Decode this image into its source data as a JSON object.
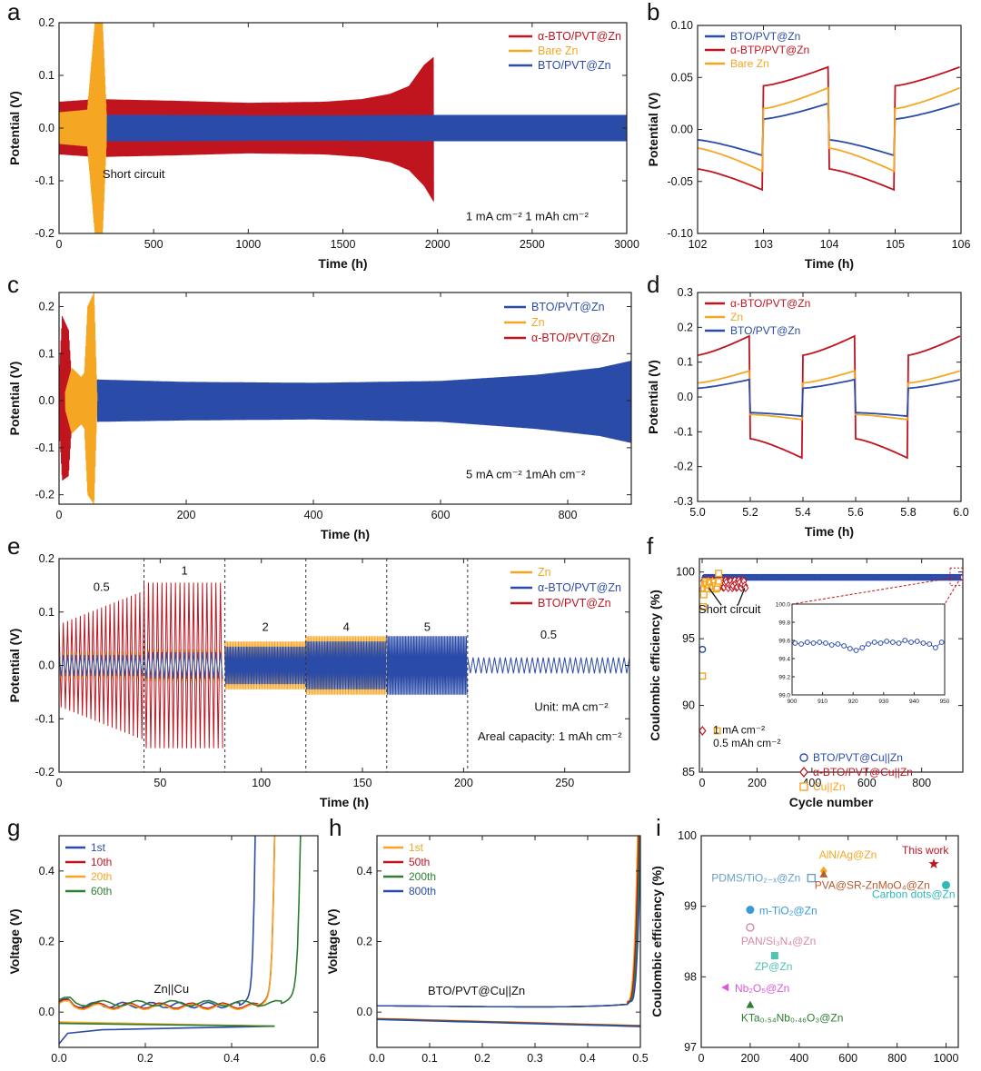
{
  "colors": {
    "red": "#c0141f",
    "orange": "#f5a623",
    "blue": "#2b4ba8",
    "green": "#2e7d32",
    "teal": "#2fb8b8",
    "lightblue": "#6aa0c8",
    "pink": "#d88aa8",
    "magenta": "#d85ad8",
    "brown": "#b85a2a"
  },
  "chart_data": [
    {
      "id": "a",
      "panel_label": "a",
      "type": "line",
      "xlabel": "Time (h)",
      "ylabel": "Potential (V)",
      "xlim": [
        0,
        3000
      ],
      "ylim": [
        -0.2,
        0.2
      ],
      "xticks": [
        0,
        500,
        1000,
        1500,
        2000,
        2500,
        3000
      ],
      "xtick_labels": [
        "0",
        "500",
        "1000",
        "1500",
        "2000",
        "2500",
        "3000"
      ],
      "yticks": [
        -0.2,
        -0.1,
        0.0,
        0.1,
        0.2
      ],
      "ytick_labels": [
        "-0.2",
        "-0.1",
        "0.0",
        "0.1",
        "0.2"
      ],
      "series": [
        {
          "name": "α-BTO/PVT@Zn",
          "color": "#c0141f",
          "kind": "envelope",
          "x": [
            0,
            200,
            600,
            1000,
            1400,
            1600,
            1750,
            1850,
            1930,
            1980
          ],
          "upper": [
            0.05,
            0.055,
            0.052,
            0.048,
            0.05,
            0.055,
            0.065,
            0.08,
            0.12,
            0.135
          ],
          "lower": [
            -0.05,
            -0.055,
            -0.052,
            -0.048,
            -0.05,
            -0.055,
            -0.065,
            -0.08,
            -0.11,
            -0.14
          ]
        },
        {
          "name": "Bare Zn",
          "color": "#f5a623",
          "kind": "envelope",
          "x": [
            0,
            150,
            190,
            210,
            230,
            250
          ],
          "upper": [
            0.03,
            0.035,
            0.2,
            0.2,
            0.2,
            0.03
          ],
          "lower": [
            -0.03,
            -0.035,
            -0.2,
            -0.2,
            -0.2,
            -0.03
          ]
        },
        {
          "name": "BTO/PVT@Zn",
          "color": "#2b4ba8",
          "kind": "envelope",
          "x": [
            0,
            500,
            1000,
            1500,
            2000,
            2500,
            3000
          ],
          "upper": [
            0.025,
            0.025,
            0.024,
            0.024,
            0.025,
            0.025,
            0.025
          ],
          "lower": [
            -0.025,
            -0.025,
            -0.024,
            -0.024,
            -0.025,
            -0.025,
            -0.025
          ]
        }
      ],
      "annotations": [
        {
          "text": "Short circuit",
          "x": 230,
          "y": -0.095
        },
        {
          "text": "1 mA cm⁻²  1 mAh cm⁻²",
          "x": 2150,
          "y": -0.175
        }
      ]
    },
    {
      "id": "b",
      "panel_label": "b",
      "type": "line",
      "xlabel": "Time (h)",
      "ylabel": "Potential (V)",
      "xlim": [
        102,
        106
      ],
      "ylim": [
        -0.1,
        0.1
      ],
      "xticks": [
        102,
        103,
        104,
        105,
        106
      ],
      "xtick_labels": [
        "102",
        "103",
        "104",
        "105",
        "106"
      ],
      "yticks": [
        -0.1,
        -0.05,
        0.0,
        0.05,
        0.1
      ],
      "ytick_labels": [
        "-0.10",
        "-0.05",
        "0.00",
        "0.05",
        "0.10"
      ],
      "series": [
        {
          "name": "BTO/PVT@Zn",
          "color": "#2b4ba8",
          "kind": "square",
          "amp_pos_start": 0.01,
          "amp_pos_end": 0.025,
          "amp_neg_start": -0.01,
          "amp_neg_end": -0.025
        },
        {
          "name": "α-BTP/PVT@Zn",
          "color": "#c0141f",
          "kind": "square",
          "amp_pos_start": 0.042,
          "amp_pos_end": 0.06,
          "amp_neg_start": -0.038,
          "amp_neg_end": -0.058
        },
        {
          "name": "Bare Zn",
          "color": "#f5a623",
          "kind": "square",
          "amp_pos_start": 0.02,
          "amp_pos_end": 0.04,
          "amp_neg_start": -0.018,
          "amp_neg_end": -0.04
        }
      ]
    },
    {
      "id": "c",
      "panel_label": "c",
      "type": "line",
      "xlabel": "Time (h)",
      "ylabel": "Potential (V)",
      "xlim": [
        0,
        900
      ],
      "ylim": [
        -0.22,
        0.23
      ],
      "xticks": [
        0,
        200,
        400,
        600,
        800
      ],
      "xtick_labels": [
        "0",
        "200",
        "400",
        "600",
        "800"
      ],
      "yticks": [
        -0.2,
        -0.1,
        0.0,
        0.1,
        0.2
      ],
      "ytick_labels": [
        "-0.2",
        "-0.1",
        "0.0",
        "0.1",
        "0.2"
      ],
      "series": [
        {
          "name": "BTO/PVT@Zn",
          "color": "#2b4ba8",
          "kind": "envelope",
          "x": [
            60,
            200,
            400,
            600,
            750,
            850,
            900
          ],
          "upper": [
            0.045,
            0.04,
            0.038,
            0.042,
            0.055,
            0.07,
            0.085
          ],
          "lower": [
            -0.045,
            -0.042,
            -0.04,
            -0.045,
            -0.06,
            -0.075,
            -0.09
          ]
        },
        {
          "name": "Zn",
          "color": "#f5a623",
          "kind": "envelope",
          "x": [
            10,
            20,
            35,
            40,
            45,
            55,
            60
          ],
          "upper": [
            0.02,
            0.07,
            0.05,
            0.06,
            0.2,
            0.23,
            0.0
          ],
          "lower": [
            -0.02,
            -0.07,
            -0.05,
            -0.06,
            -0.2,
            -0.22,
            0.0
          ]
        },
        {
          "name": "α-BTO/PVT@Zn",
          "color": "#c0141f",
          "kind": "envelope",
          "x": [
            0,
            5,
            15,
            22
          ],
          "upper": [
            0.05,
            0.18,
            0.15,
            0.0
          ],
          "lower": [
            -0.05,
            -0.17,
            -0.16,
            0.0
          ]
        }
      ],
      "annotations": [
        {
          "text": "5 mA cm⁻² 1mAh cm⁻²",
          "x": 640,
          "y": -0.165
        }
      ]
    },
    {
      "id": "d",
      "panel_label": "d",
      "type": "line",
      "xlabel": "Time (h)",
      "ylabel": "Potential (V)",
      "xlim": [
        5.0,
        6.0
      ],
      "ylim": [
        -0.3,
        0.3
      ],
      "xticks": [
        5.0,
        5.2,
        5.4,
        5.6,
        5.8,
        6.0
      ],
      "xtick_labels": [
        "5.0",
        "5.2",
        "5.4",
        "5.6",
        "5.8",
        "6.0"
      ],
      "yticks": [
        -0.3,
        -0.2,
        -0.1,
        0.0,
        0.1,
        0.2,
        0.3
      ],
      "ytick_labels": [
        "-0.3",
        "-0.2",
        "-0.1",
        "0.0",
        "0.1",
        "0.2",
        "0.3"
      ],
      "series": [
        {
          "name": "α-BTO/PVT@Zn",
          "color": "#c0141f",
          "kind": "square",
          "amp_pos_start": 0.12,
          "amp_pos_end": 0.175,
          "amp_neg_start": -0.12,
          "amp_neg_end": -0.175
        },
        {
          "name": "Zn",
          "color": "#f5a623",
          "kind": "square",
          "amp_pos_start": 0.04,
          "amp_pos_end": 0.075,
          "amp_neg_start": -0.05,
          "amp_neg_end": -0.065
        },
        {
          "name": "BTO/PVT@Zn",
          "color": "#2b4ba8",
          "kind": "square",
          "amp_pos_start": 0.025,
          "amp_pos_end": 0.05,
          "amp_neg_start": -0.045,
          "amp_neg_end": -0.055
        }
      ]
    },
    {
      "id": "e",
      "panel_label": "e",
      "type": "line",
      "xlabel": "Time (h)",
      "ylabel": "Potential (V)",
      "xlim": [
        0,
        282
      ],
      "ylim": [
        -0.2,
        0.2
      ],
      "xticks": [
        0,
        50,
        100,
        150,
        200,
        250
      ],
      "xtick_labels": [
        "0",
        "50",
        "100",
        "150",
        "200",
        "250"
      ],
      "yticks": [
        -0.2,
        -0.1,
        0.0,
        0.1,
        0.2
      ],
      "ytick_labels": [
        "-0.2",
        "-0.1",
        "0.0",
        "0.1",
        "0.2"
      ],
      "segments": [
        {
          "x0": 0,
          "x1": 42,
          "rate_label": "0.5",
          "red_amp": 0.14,
          "blue_amp": 0.02,
          "orange_amp": 0.025
        },
        {
          "x0": 42,
          "x1": 82,
          "rate_label": "1",
          "red_amp": 0.155,
          "blue_amp": 0.025,
          "orange_amp": 0.03
        },
        {
          "x0": 82,
          "x1": 122,
          "rate_label": "2",
          "red_amp": 0.02,
          "blue_amp": 0.035,
          "orange_amp": 0.045
        },
        {
          "x0": 122,
          "x1": 162,
          "rate_label": "4",
          "red_amp": 0.0,
          "blue_amp": 0.045,
          "orange_amp": 0.055
        },
        {
          "x0": 162,
          "x1": 202,
          "rate_label": "5",
          "red_amp": 0.0,
          "blue_amp": 0.055,
          "orange_amp": 0.0
        },
        {
          "x0": 202,
          "x1": 282,
          "rate_label": "0.5",
          "red_amp": 0.0,
          "blue_amp": 0.015,
          "orange_amp": 0.0
        }
      ],
      "boundaries": [
        42,
        82,
        122,
        162,
        202
      ],
      "legend": [
        {
          "name": "Zn",
          "color": "#f5a623"
        },
        {
          "name": "α-BTO/PVT@Zn",
          "color": "#2b4ba8"
        },
        {
          "name": "BTO/PVT@Zn",
          "color": "#c0141f"
        }
      ],
      "annotations": [
        {
          "text": "Unit: mA cm⁻²",
          "x": 235,
          "y": -0.085
        },
        {
          "text": "Areal capacity: 1 mAh cm⁻²",
          "x": 207,
          "y": -0.14
        }
      ]
    },
    {
      "id": "f",
      "panel_label": "f",
      "type": "scatter",
      "xlabel": "Cycle number",
      "ylabel": "Coulombic efficiency (%)",
      "xlim": [
        -10,
        950
      ],
      "ylim": [
        85,
        101
      ],
      "xticks": [
        0,
        200,
        400,
        600,
        800
      ],
      "xtick_labels": [
        "0",
        "200",
        "400",
        "600",
        "800"
      ],
      "yticks": [
        85,
        90,
        95,
        100
      ],
      "ytick_labels": [
        "85",
        "90",
        "95",
        "100"
      ],
      "series": [
        {
          "name": "BTO/PVT@Cu||Zn",
          "color": "#2b4ba8",
          "marker": "circle",
          "first_points": [
            [
              1,
              94.2
            ],
            [
              5,
              98.6
            ],
            [
              10,
              99.1
            ]
          ],
          "steady_value": 99.6,
          "x_start": 10,
          "x_end": 950
        },
        {
          "name": "α-BTO/PVT@Cu||Zn",
          "color": "#c0141f",
          "marker": "diamond",
          "first_points": [
            [
              1,
              88.1
            ],
            [
              5,
              98.8
            ]
          ],
          "steady_value": 99.1,
          "x_start": 5,
          "x_end": 160
        },
        {
          "name": "Cu||Zn",
          "color": "#f5a623",
          "marker": "square",
          "first_points": [
            [
              1,
              92.2
            ],
            [
              3,
              97.4
            ],
            [
              6,
              98.3
            ],
            [
              55,
              88.1
            ],
            [
              60,
              99.9
            ]
          ],
          "steady_value": 99.0,
          "x_start": 6,
          "x_end": 60
        }
      ],
      "annotations": [
        {
          "text": "Short circuit",
          "x": 100,
          "y": 96.9
        },
        {
          "text": "1 mA cm⁻²",
          "x": 40,
          "y": 87.9
        },
        {
          "text": "0.5 mAh cm⁻²",
          "x": 40,
          "y": 86.9
        }
      ],
      "inset": {
        "xlim": [
          900,
          950
        ],
        "ylim": [
          99.0,
          100.0
        ],
        "xticks": [
          900,
          910,
          920,
          930,
          940,
          950
        ],
        "xtick_labels": [
          "900",
          "910",
          "920",
          "930",
          "940",
          "950"
        ],
        "yticks": [
          99.0,
          99.2,
          99.4,
          99.6,
          99.8,
          100.0
        ],
        "ytick_labels": [
          "99.0",
          "99.2",
          "99.4",
          "99.6",
          "99.8",
          "100.0"
        ],
        "x": [
          901,
          903,
          905,
          907,
          909,
          911,
          913,
          915,
          917,
          919,
          921,
          923,
          925,
          927,
          929,
          931,
          933,
          935,
          937,
          939,
          941,
          943,
          945,
          947,
          949
        ],
        "y": [
          99.57,
          99.56,
          99.58,
          99.57,
          99.58,
          99.57,
          99.55,
          99.56,
          99.54,
          99.51,
          99.49,
          99.52,
          99.56,
          99.58,
          99.57,
          99.59,
          99.58,
          99.57,
          99.6,
          99.58,
          99.59,
          99.57,
          99.56,
          99.52,
          99.58
        ]
      }
    },
    {
      "id": "g",
      "panel_label": "g",
      "type": "line",
      "xlabel": "",
      "ylabel": "Voltage (V)",
      "xlim": [
        0,
        0.6
      ],
      "ylim": [
        -0.1,
        0.5
      ],
      "xticks": [
        0,
        0.2,
        0.4,
        0.6
      ],
      "xtick_labels": [
        "0.0",
        "0.2",
        "0.4",
        "0.6"
      ],
      "yticks": [
        0.0,
        0.2,
        0.4
      ],
      "ytick_labels": [
        "0.0",
        "0.2",
        "0.4"
      ],
      "series": [
        {
          "name": "1st",
          "color": "#2b4ba8",
          "charge_end": 0.455,
          "plateau": 0.02,
          "dis_x": [
            0,
            0.02,
            0.1,
            0.3,
            0.5
          ],
          "dis_y": [
            -0.09,
            -0.06,
            -0.05,
            -0.045,
            -0.04
          ]
        },
        {
          "name": "10th",
          "color": "#c0141f",
          "charge_end": 0.5,
          "plateau": 0.018,
          "dis_x": [
            0,
            0.5
          ],
          "dis_y": [
            -0.03,
            -0.04
          ]
        },
        {
          "name": "20th",
          "color": "#f5a623",
          "charge_end": 0.5,
          "plateau": 0.015,
          "dis_x": [
            0,
            0.5
          ],
          "dis_y": [
            -0.028,
            -0.04
          ]
        },
        {
          "name": "60th",
          "color": "#2e7d32",
          "charge_end": 0.56,
          "plateau": 0.025,
          "dis_x": [
            0,
            0.5
          ],
          "dis_y": [
            -0.032,
            -0.04
          ]
        }
      ],
      "annotations": [
        {
          "text": "Zn||Cu",
          "x": 0.22,
          "y": 0.055
        }
      ]
    },
    {
      "id": "h",
      "panel_label": "h",
      "type": "line",
      "xlabel": "",
      "ylabel": "Voltage (V)",
      "xlim": [
        0,
        0.5
      ],
      "ylim": [
        -0.1,
        0.5
      ],
      "xticks": [
        0,
        0.1,
        0.2,
        0.3,
        0.4,
        0.5
      ],
      "xtick_labels": [
        "0.0",
        "0.1",
        "0.2",
        "0.3",
        "0.4",
        "0.5"
      ],
      "yticks": [
        0.0,
        0.2,
        0.4
      ],
      "ytick_labels": [
        "0.0",
        "0.2",
        "0.4"
      ],
      "series": [
        {
          "name": "1st",
          "color": "#f5a623"
        },
        {
          "name": "50th",
          "color": "#c0141f"
        },
        {
          "name": "200th",
          "color": "#2e7d32"
        },
        {
          "name": "800th",
          "color": "#2b4ba8"
        }
      ],
      "annotations": [
        {
          "text": "BTO/PVT@Cu||Zn",
          "x": 0.2,
          "y": 0.05
        }
      ]
    },
    {
      "id": "i",
      "panel_label": "i",
      "type": "scatter",
      "xlabel": "",
      "ylabel": "Coulombic efficiency (%)",
      "xlim": [
        0,
        1050
      ],
      "ylim": [
        97,
        100
      ],
      "xticks": [
        0,
        200,
        400,
        600,
        800,
        1000
      ],
      "xtick_labels": [
        "0",
        "200",
        "400",
        "600",
        "800",
        "1000"
      ],
      "yticks": [
        97,
        98,
        99,
        100
      ],
      "ytick_labels": [
        "97",
        "98",
        "99",
        "100"
      ],
      "points": [
        {
          "label": "This work",
          "x": 950,
          "y": 99.6,
          "color": "#c0141f",
          "marker": "star"
        },
        {
          "label": "AlN/Ag@Zn",
          "x": 500,
          "y": 99.5,
          "color": "#f5a623",
          "marker": "diamond"
        },
        {
          "label": "PDMS/TiO₂₋ₓ@Zn",
          "x": 450,
          "y": 99.4,
          "color": "#6aa0c8",
          "marker": "square-open"
        },
        {
          "label": "PVA@SR-ZnMoO₄@Zn",
          "x": 500,
          "y": 99.45,
          "color": "#b85a2a",
          "marker": "triangle"
        },
        {
          "label": "Carbon dots@Zn",
          "x": 1000,
          "y": 99.3,
          "color": "#2fb8b8",
          "marker": "circle"
        },
        {
          "label": "m-TiO₂@Zn",
          "x": 200,
          "y": 98.95,
          "color": "#3a9ad9",
          "marker": "circle"
        },
        {
          "label": "PAN/Si₃N₄@Zn",
          "x": 200,
          "y": 98.7,
          "color": "#d88aa8",
          "marker": "circle-open"
        },
        {
          "label": "ZP@Zn",
          "x": 300,
          "y": 98.3,
          "color": "#4fc4b0",
          "marker": "square"
        },
        {
          "label": "Nb₂O₅@Zn",
          "x": 100,
          "y": 97.85,
          "color": "#d85ad8",
          "marker": "triangle-left"
        },
        {
          "label": "KTa₀.₅₄Nb₀.₄₆O₃@Zn",
          "x": 200,
          "y": 97.6,
          "color": "#2e7d32",
          "marker": "triangle"
        }
      ]
    }
  ]
}
